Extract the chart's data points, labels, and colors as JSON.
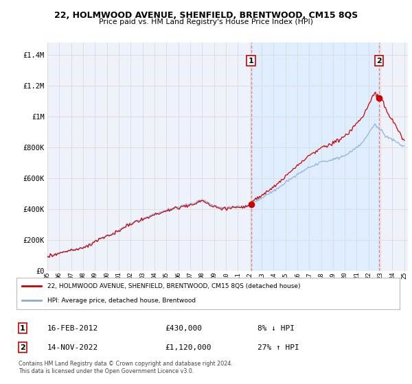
{
  "title": "22, HOLMWOOD AVENUE, SHENFIELD, BRENTWOOD, CM15 8QS",
  "subtitle": "Price paid vs. HM Land Registry's House Price Index (HPI)",
  "ylabel_ticks": [
    "£0",
    "£200K",
    "£400K",
    "£600K",
    "£800K",
    "£1M",
    "£1.2M",
    "£1.4M"
  ],
  "ytick_values": [
    0,
    200000,
    400000,
    600000,
    800000,
    1000000,
    1200000,
    1400000
  ],
  "ylim": [
    0,
    1480000
  ],
  "xlim_start": 1995.0,
  "xlim_end": 2025.3,
  "sale1_x": 2012.12,
  "sale1_price": 430000,
  "sale2_x": 2022.88,
  "sale2_price": 1120000,
  "legend_entry1": "22, HOLMWOOD AVENUE, SHENFIELD, BRENTWOOD, CM15 8QS (detached house)",
  "legend_entry2": "HPI: Average price, detached house, Brentwood",
  "footnote1": "Contains HM Land Registry data © Crown copyright and database right 2024.",
  "footnote2": "This data is licensed under the Open Government Licence v3.0.",
  "table_row1": [
    "1",
    "16-FEB-2012",
    "£430,000",
    "8% ↓ HPI"
  ],
  "table_row2": [
    "2",
    "14-NOV-2022",
    "£1,120,000",
    "27% ↑ HPI"
  ],
  "line_color_red": "#cc0000",
  "line_color_blue": "#88aadd",
  "shade_color": "#ddeeff",
  "bg_color": "#eef3fb",
  "grid_color": "#dddddd",
  "label_box_color": "#cc0000"
}
